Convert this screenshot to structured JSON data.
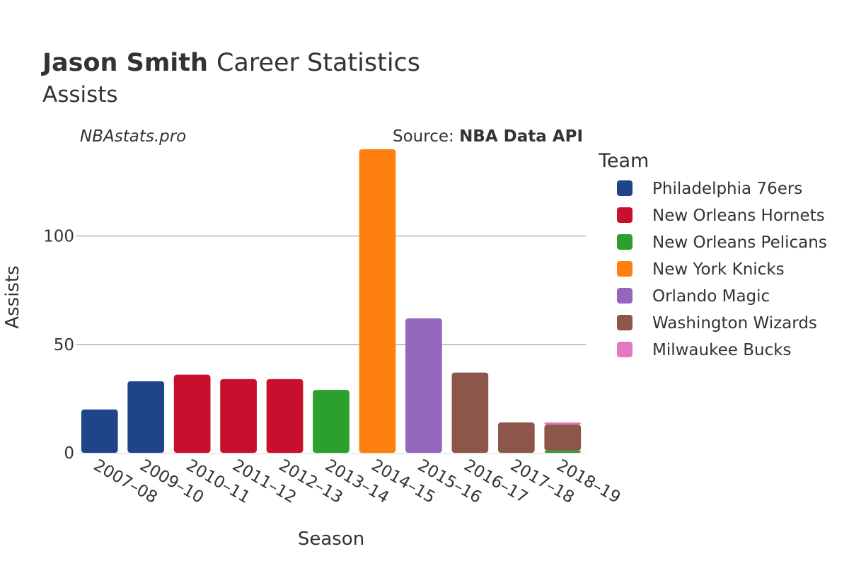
{
  "chart_data": {
    "type": "bar",
    "stacked": true,
    "title_bold": "Jason Smith",
    "title_rest": "Career Statistics",
    "subtitle": "Assists",
    "watermark": "NBAstats.pro",
    "source_prefix": "Source: ",
    "source_name": "NBA Data API",
    "xlabel": "Season",
    "ylabel": "Assists",
    "ylim": [
      0,
      140
    ],
    "yticks": [
      0,
      50,
      100
    ],
    "grid": true,
    "legend_title": "Team",
    "legend_position": "right",
    "categories": [
      "2007–08",
      "2009–10",
      "2010–11",
      "2011–12",
      "2012–13",
      "2013–14",
      "2014–15",
      "2015–16",
      "2016–17",
      "2017–18",
      "2018–19"
    ],
    "series": [
      {
        "name": "Philadelphia 76ers",
        "color": "#1f4489",
        "values": [
          20,
          33,
          0,
          0,
          0,
          0,
          0,
          0,
          0,
          0,
          0
        ]
      },
      {
        "name": "New Orleans Hornets",
        "color": "#c8102e",
        "values": [
          0,
          0,
          36,
          34,
          34,
          0,
          0,
          0,
          0,
          0,
          0
        ]
      },
      {
        "name": "New Orleans Pelicans",
        "color": "#2ca02c",
        "values": [
          0,
          0,
          0,
          0,
          0,
          29,
          0,
          0,
          0,
          0,
          1
        ]
      },
      {
        "name": "New York Knicks",
        "color": "#ff7f0e",
        "values": [
          0,
          0,
          0,
          0,
          0,
          0,
          140,
          0,
          0,
          0,
          0
        ]
      },
      {
        "name": "Orlando Magic",
        "color": "#9467bd",
        "values": [
          0,
          0,
          0,
          0,
          0,
          0,
          0,
          62,
          0,
          0,
          0
        ]
      },
      {
        "name": "Washington Wizards",
        "color": "#8c564b",
        "values": [
          0,
          0,
          0,
          0,
          0,
          0,
          0,
          0,
          37,
          14,
          12
        ]
      },
      {
        "name": "Milwaukee Bucks",
        "color": "#e377c2",
        "values": [
          0,
          0,
          0,
          0,
          0,
          0,
          0,
          0,
          0,
          0,
          1
        ]
      }
    ]
  }
}
